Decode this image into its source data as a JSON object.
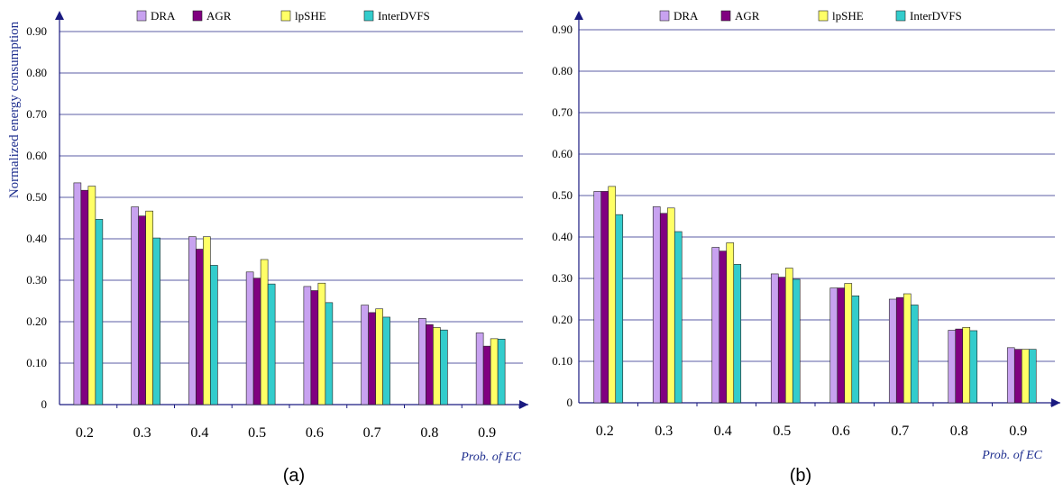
{
  "chart_data": [
    {
      "type": "bar",
      "panel_label": "(a)",
      "title": "",
      "xlabel": "Prob. of EC",
      "ylabel": "Normalized energy consumption",
      "ylim": [
        0,
        0.9
      ],
      "yticks": [
        "0",
        "0.10",
        "0.20",
        "0.30",
        "0.40",
        "0.50",
        "0.60",
        "0.70",
        "0.80",
        "0.90"
      ],
      "grid": true,
      "legend_position": "top",
      "categories": [
        "0.2",
        "0.3",
        "0.4",
        "0.5",
        "0.6",
        "0.7",
        "0.8",
        "0.9"
      ],
      "series": [
        {
          "name": "DRA",
          "color": "#c8a2f0",
          "values": [
            0.535,
            0.477,
            0.405,
            0.32,
            0.285,
            0.24,
            0.208,
            0.173
          ]
        },
        {
          "name": "AGR",
          "color": "#800080",
          "values": [
            0.517,
            0.455,
            0.375,
            0.305,
            0.275,
            0.222,
            0.193,
            0.141
          ]
        },
        {
          "name": "lpSHE",
          "color": "#ffff66",
          "values": [
            0.527,
            0.467,
            0.405,
            0.35,
            0.293,
            0.231,
            0.186,
            0.159
          ]
        },
        {
          "name": "InterDVFS",
          "color": "#33cccc",
          "values": [
            0.447,
            0.402,
            0.336,
            0.291,
            0.246,
            0.211,
            0.18,
            0.158
          ]
        }
      ]
    },
    {
      "type": "bar",
      "panel_label": "(b)",
      "title": "",
      "xlabel": "Prob. of EC",
      "ylabel": "",
      "ylim": [
        0,
        0.9
      ],
      "yticks": [
        "0",
        "0.10",
        "0.20",
        "0.30",
        "0.40",
        "0.50",
        "0.60",
        "0.70",
        "0.80",
        "0.90"
      ],
      "grid": true,
      "legend_position": "top",
      "categories": [
        "0.2",
        "0.3",
        "0.4",
        "0.5",
        "0.6",
        "0.7",
        "0.8",
        "0.9"
      ],
      "series": [
        {
          "name": "DRA",
          "color": "#c8a2f0",
          "values": [
            0.51,
            0.473,
            0.375,
            0.311,
            0.277,
            0.25,
            0.175,
            0.133
          ]
        },
        {
          "name": "AGR",
          "color": "#800080",
          "values": [
            0.51,
            0.457,
            0.366,
            0.303,
            0.277,
            0.254,
            0.178,
            0.129
          ]
        },
        {
          "name": "lpSHE",
          "color": "#ffff66",
          "values": [
            0.522,
            0.47,
            0.386,
            0.325,
            0.288,
            0.263,
            0.182,
            0.129
          ]
        },
        {
          "name": "InterDVFS",
          "color": "#33cccc",
          "values": [
            0.454,
            0.413,
            0.334,
            0.298,
            0.258,
            0.236,
            0.174,
            0.129
          ]
        }
      ]
    }
  ]
}
